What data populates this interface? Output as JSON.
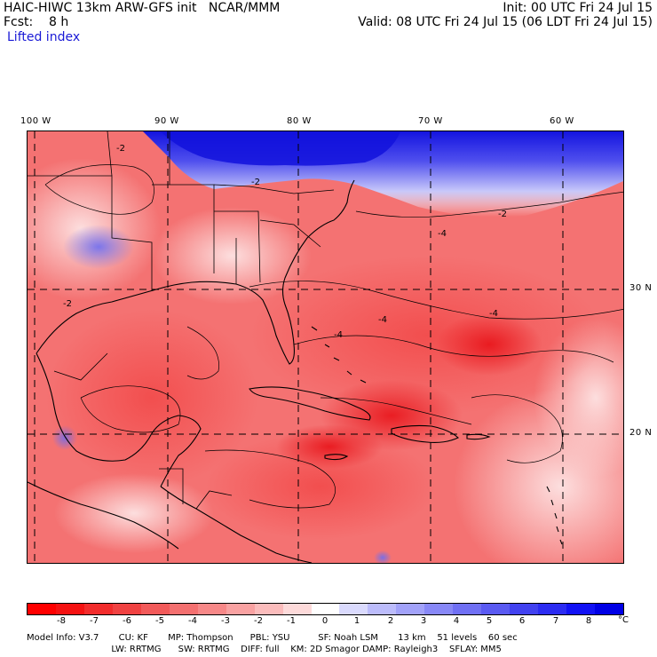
{
  "header": {
    "model_title": "HAIC-HIWC 13km ARW-GFS init   NCAR/MMM",
    "forecast": "Fcst:    8 h",
    "field": "Lifted index",
    "init": "Init: 00 UTC Fri 24 Jul 15",
    "valid": "Valid: 08 UTC Fri 24 Jul 15 (06 LDT Fri 24 Jul 15)"
  },
  "map": {
    "longitude_labels": [
      "100 W",
      "90 W",
      "80 W",
      "70 W",
      "60 W"
    ],
    "latitude_labels": [
      "30 N",
      "20 N"
    ],
    "contour_labels": [
      "-2",
      "-2",
      "-2",
      "-2",
      "-4",
      "-4",
      "-4",
      "-4"
    ],
    "colors": {
      "strong_negative": "#e8141a",
      "moderate_negative": "#f55a5a",
      "weak_negative": "#fbb4b4",
      "positive": "#2a2ae6",
      "border": "#000000"
    }
  },
  "colorbar": {
    "ticks": [
      "-8",
      "-7",
      "-6",
      "-5",
      "-4",
      "-3",
      "-2",
      "-1",
      "0",
      "1",
      "2",
      "3",
      "4",
      "5",
      "6",
      "7",
      "8"
    ],
    "unit": "°C",
    "colors": [
      "#ff0000",
      "#f51212",
      "#f22c2c",
      "#f04242",
      "#f25a5a",
      "#f47070",
      "#f78888",
      "#f9a2a2",
      "#fbbcbc",
      "#fddada",
      "#ffffff",
      "#dadafd",
      "#bcbcfb",
      "#a2a2f9",
      "#8888f7",
      "#7070f4",
      "#5a5af2",
      "#4242f0",
      "#2c2cf2",
      "#1212f5",
      "#0000e6"
    ]
  },
  "model_info": {
    "line1": "Model Info: V3.7       CU: KF       MP: Thompson      PBL: YSU          SF: Noah LSM       13 km    51 levels    60 sec",
    "line2": "                              LW: RRTMG      SW: RRTMG    DIFF: full    KM: 2D Smagor DAMP: Rayleigh3    SFLAY: MM5"
  }
}
